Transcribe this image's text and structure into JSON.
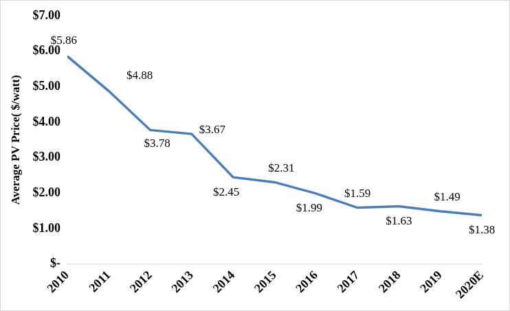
{
  "chart_data": {
    "type": "line",
    "y_label": "Average PV Price( $/watt)",
    "categories": [
      "2010",
      "2011",
      "2012",
      "2013",
      "2014",
      "2015",
      "2016",
      "2017",
      "2018",
      "2019",
      "2020E"
    ],
    "values": [
      5.86,
      4.88,
      3.78,
      3.67,
      2.45,
      2.31,
      1.99,
      1.59,
      1.63,
      1.49,
      1.38
    ],
    "value_labels": [
      "$5.86",
      "$4.88",
      "$3.78",
      "$3.67",
      "$2.45",
      "$2.31",
      "$1.99",
      "$1.59",
      "$1.63",
      "$1.49",
      "$1.38"
    ],
    "color": "#4a7ebb",
    "ylim": [
      0,
      7
    ],
    "yticks": [
      {
        "value": 0,
        "label": "$-"
      },
      {
        "value": 1,
        "label": "$1.00"
      },
      {
        "value": 2,
        "label": "$2.00"
      },
      {
        "value": 3,
        "label": "$3.00"
      },
      {
        "value": 4,
        "label": "$4.00"
      },
      {
        "value": 5,
        "label": "$5.00"
      },
      {
        "value": 6,
        "label": "$6.00"
      },
      {
        "value": 7,
        "label": "$7.00"
      }
    ],
    "grid": false,
    "data_labels": true,
    "marker": "none"
  }
}
